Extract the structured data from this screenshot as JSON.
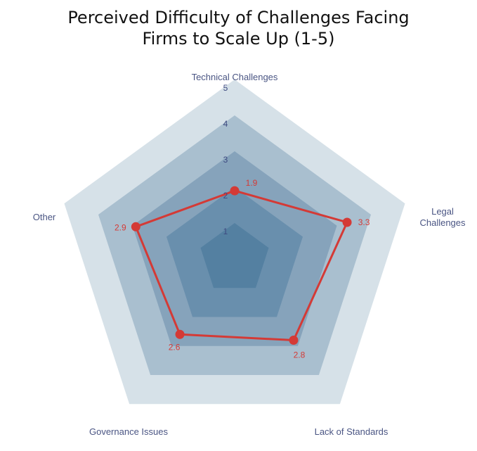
{
  "chart_data": {
    "type": "radar",
    "title_lines": [
      "Perceived Difficulty of Challenges Facing",
      "Firms to Scale Up (1-5)"
    ],
    "categories": [
      "Technical Challenges",
      "Legal Challenges",
      "Lack of Standards",
      "Governance Issues",
      "Other"
    ],
    "values": [
      1.9,
      3.3,
      2.8,
      2.6,
      2.9
    ],
    "value_labels": [
      "1.9",
      "3.3",
      "2.8",
      "2.6",
      "2.9"
    ],
    "range": [
      0,
      5
    ],
    "ticks": [
      "1",
      "2",
      "3",
      "4",
      "5"
    ],
    "colors": {
      "rings": [
        "#5480a1",
        "#698fad",
        "#86a3bb",
        "#a9bfcf",
        "#d6e1e8"
      ],
      "series": "#d43a36",
      "tick_text": "#3e4a80",
      "axis_text": "#4a5583"
    }
  }
}
